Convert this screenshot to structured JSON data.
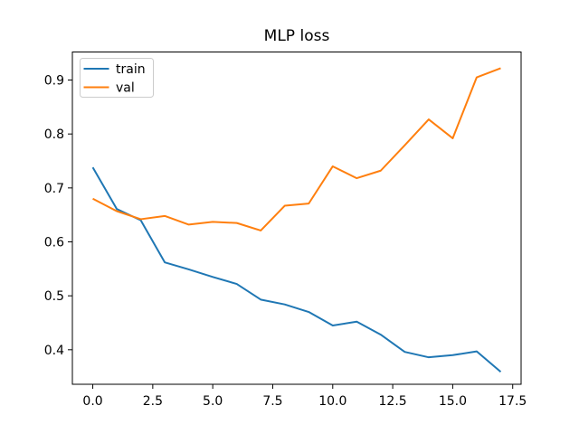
{
  "figure": {
    "background": "#ffffff"
  },
  "chart_data": {
    "type": "line",
    "title": "MLP loss",
    "xlabel": "",
    "ylabel": "",
    "x": [
      0,
      1,
      2,
      3,
      4,
      5,
      6,
      7,
      8,
      9,
      10,
      11,
      12,
      13,
      14,
      15,
      16,
      17
    ],
    "series": [
      {
        "name": "train",
        "color": "#1f77b4",
        "values": [
          0.738,
          0.661,
          0.64,
          0.562,
          0.549,
          0.535,
          0.522,
          0.493,
          0.484,
          0.47,
          0.445,
          0.452,
          0.428,
          0.396,
          0.386,
          0.39,
          0.397,
          0.359
        ]
      },
      {
        "name": "val",
        "color": "#ff7f0e",
        "values": [
          0.68,
          0.657,
          0.642,
          0.648,
          0.632,
          0.637,
          0.635,
          0.621,
          0.667,
          0.671,
          0.74,
          0.718,
          0.732,
          0.779,
          0.827,
          0.792,
          0.905,
          0.922
        ]
      }
    ],
    "xlim": [
      -0.85,
      17.85
    ],
    "ylim": [
      0.336,
      0.952
    ],
    "xticks": {
      "values": [
        0,
        2.5,
        5,
        7.5,
        10,
        12.5,
        15,
        17.5
      ],
      "labels": [
        "0.0",
        "2.5",
        "5.0",
        "7.5",
        "10.0",
        "12.5",
        "15.0",
        "17.5"
      ]
    },
    "yticks": {
      "values": [
        0.4,
        0.5,
        0.6,
        0.7,
        0.8,
        0.9
      ],
      "labels": [
        "0.4",
        "0.5",
        "0.6",
        "0.7",
        "0.8",
        "0.9"
      ]
    },
    "legend": {
      "position": "upper left",
      "entries": [
        "train",
        "val"
      ]
    },
    "grid": false,
    "axis_color": "#000000",
    "legend_border_color": "#cccccc"
  }
}
